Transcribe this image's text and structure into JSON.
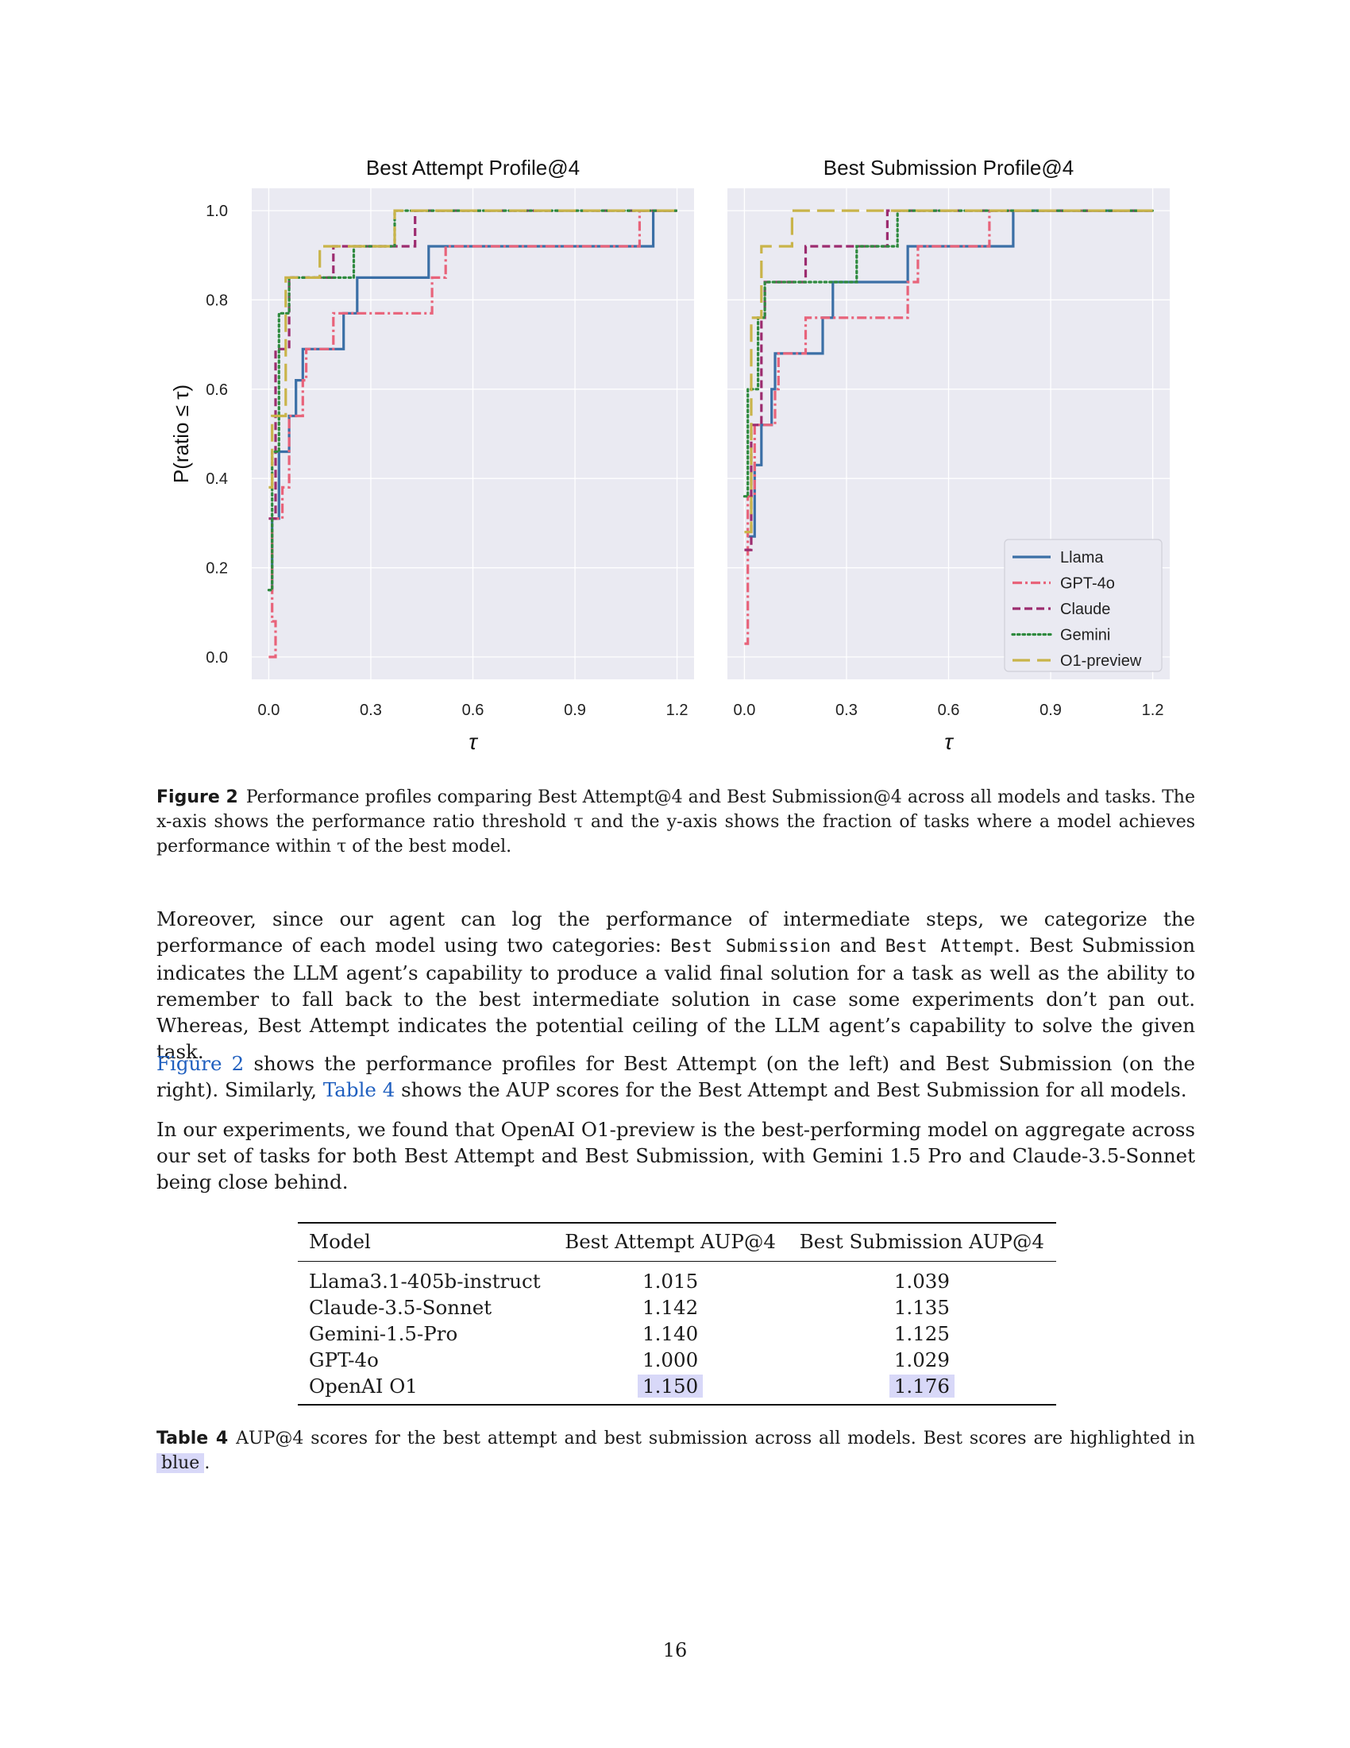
{
  "figure": {
    "label": "Figure 2",
    "caption": "Performance profiles comparing Best Attempt@4 and Best Submission@4 across all models and tasks. The x-axis shows the performance ratio threshold τ and the y-axis shows the fraction of tasks where a model achieves performance within τ of the best model.",
    "colors": {
      "background": "#eaeaf2",
      "Llama": "#3b6fa6",
      "GPT-4o": "#e8637a",
      "Claude": "#9c2c6f",
      "Gemini": "#2e8a3e",
      "O1-preview": "#c9b44a"
    }
  },
  "chart_data": [
    {
      "type": "line",
      "step": true,
      "title": "Best Attempt Profile@4",
      "xlabel": "τ",
      "ylabel": "P(ratio ≤ τ)",
      "xlim": [
        -0.05,
        1.25
      ],
      "ylim": [
        -0.05,
        1.05
      ],
      "xticks": [
        "0.0",
        "0.3",
        "0.6",
        "0.9",
        "1.2"
      ],
      "yticks": [
        "0.0",
        "0.2",
        "0.4",
        "0.6",
        "0.8",
        "1.0"
      ],
      "grid": true,
      "legend": false,
      "series": [
        {
          "name": "Llama",
          "style": "solid",
          "points": [
            [
              0,
              0.15
            ],
            [
              0.01,
              0.31
            ],
            [
              0.03,
              0.46
            ],
            [
              0.06,
              0.54
            ],
            [
              0.08,
              0.62
            ],
            [
              0.1,
              0.69
            ],
            [
              0.22,
              0.77
            ],
            [
              0.26,
              0.85
            ],
            [
              0.47,
              0.92
            ],
            [
              1.13,
              1.0
            ],
            [
              1.2,
              1.0
            ]
          ]
        },
        {
          "name": "GPT-4o",
          "style": "dashdot",
          "points": [
            [
              0,
              0.0
            ],
            [
              0.02,
              0.08
            ],
            [
              0.01,
              0.31
            ],
            [
              0.04,
              0.38
            ],
            [
              0.06,
              0.54
            ],
            [
              0.1,
              0.62
            ],
            [
              0.11,
              0.69
            ],
            [
              0.19,
              0.77
            ],
            [
              0.48,
              0.85
            ],
            [
              0.52,
              0.92
            ],
            [
              1.09,
              1.0
            ],
            [
              1.2,
              1.0
            ]
          ]
        },
        {
          "name": "Claude",
          "style": "dashed",
          "points": [
            [
              0,
              0.31
            ],
            [
              0.02,
              0.69
            ],
            [
              0.06,
              0.85
            ],
            [
              0.19,
              0.92
            ],
            [
              0.43,
              1.0
            ],
            [
              1.2,
              1.0
            ]
          ]
        },
        {
          "name": "Gemini",
          "style": "dotted",
          "points": [
            [
              0,
              0.15
            ],
            [
              0.01,
              0.46
            ],
            [
              0.03,
              0.77
            ],
            [
              0.06,
              0.85
            ],
            [
              0.25,
              0.92
            ],
            [
              0.37,
              1.0
            ],
            [
              1.2,
              1.0
            ]
          ]
        },
        {
          "name": "O1-preview",
          "style": "longdash",
          "points": [
            [
              0,
              0.38
            ],
            [
              0.01,
              0.54
            ],
            [
              0.05,
              0.85
            ],
            [
              0.15,
              0.92
            ],
            [
              0.37,
              1.0
            ],
            [
              1.2,
              1.0
            ]
          ]
        }
      ]
    },
    {
      "type": "line",
      "step": true,
      "title": "Best Submission Profile@4",
      "xlabel": "τ",
      "ylabel": "",
      "xlim": [
        -0.05,
        1.25
      ],
      "ylim": [
        -0.05,
        1.05
      ],
      "xticks": [
        "0.0",
        "0.3",
        "0.6",
        "0.9",
        "1.2"
      ],
      "yticks": [],
      "grid": true,
      "legend": "bottom-right",
      "series": [
        {
          "name": "Llama",
          "style": "solid",
          "points": [
            [
              0.01,
              0.27
            ],
            [
              0.03,
              0.43
            ],
            [
              0.05,
              0.52
            ],
            [
              0.08,
              0.6
            ],
            [
              0.09,
              0.68
            ],
            [
              0.23,
              0.76
            ],
            [
              0.26,
              0.84
            ],
            [
              0.48,
              0.92
            ],
            [
              0.79,
              1.0
            ],
            [
              1.2,
              1.0
            ]
          ]
        },
        {
          "name": "GPT-4o",
          "style": "dashdot",
          "points": [
            [
              0,
              0.03
            ],
            [
              0.01,
              0.36
            ],
            [
              0.03,
              0.52
            ],
            [
              0.09,
              0.6
            ],
            [
              0.1,
              0.68
            ],
            [
              0.18,
              0.76
            ],
            [
              0.48,
              0.84
            ],
            [
              0.51,
              0.92
            ],
            [
              0.72,
              1.0
            ],
            [
              1.2,
              1.0
            ]
          ]
        },
        {
          "name": "Claude",
          "style": "dashed",
          "points": [
            [
              0,
              0.24
            ],
            [
              0.02,
              0.52
            ],
            [
              0.05,
              0.76
            ],
            [
              0.06,
              0.84
            ],
            [
              0.18,
              0.92
            ],
            [
              0.42,
              1.0
            ],
            [
              1.2,
              1.0
            ]
          ]
        },
        {
          "name": "Gemini",
          "style": "dotted",
          "points": [
            [
              0,
              0.36
            ],
            [
              0.01,
              0.6
            ],
            [
              0.04,
              0.76
            ],
            [
              0.06,
              0.84
            ],
            [
              0.33,
              0.92
            ],
            [
              0.45,
              1.0
            ],
            [
              1.2,
              1.0
            ]
          ]
        },
        {
          "name": "O1-preview",
          "style": "longdash",
          "points": [
            [
              0,
              0.28
            ],
            [
              0.02,
              0.76
            ],
            [
              0.05,
              0.92
            ],
            [
              0.14,
              1.0
            ],
            [
              1.2,
              1.0
            ]
          ]
        }
      ]
    }
  ],
  "body": {
    "para1": {
      "t1": "Moreover, since our agent can log the performance of intermediate steps, we categorize the performance of each model using two categories: ",
      "code1": "Best Submission",
      "t2": " and ",
      "code2": "Best Attempt",
      "t3": ". Best Submission indicates the LLM agent’s capability to produce a valid final solution for a task as well as the ability to remember to fall back to the best intermediate solution in case some experiments don’t pan out. Whereas, Best Attempt indicates the potential ceiling of the LLM agent’s capability to solve the given task."
    },
    "para2": {
      "ref1": "Figure 2",
      "t1": " shows the performance profiles for Best Attempt (on the left) and Best Submission (on the right). Similarly, ",
      "ref2": "Table 4",
      "t2": " shows the AUP scores for the Best Attempt and Best Submission for all models."
    },
    "para3": "In our experiments, we found that OpenAI O1-preview is the best-performing model on aggregate across our set of tasks for both Best Attempt and Best Submission, with Gemini 1.5 Pro and Claude-3.5-Sonnet being close behind."
  },
  "table": {
    "headers": [
      "Model",
      "Best Attempt AUP@4",
      "Best Submission AUP@4"
    ],
    "rows": [
      {
        "model": "Llama3.1-405b-instruct",
        "attempt": "1.015",
        "submission": "1.039"
      },
      {
        "model": "Claude-3.5-Sonnet",
        "attempt": "1.142",
        "submission": "1.135"
      },
      {
        "model": "Gemini-1.5-Pro",
        "attempt": "1.140",
        "submission": "1.125"
      },
      {
        "model": "GPT-4o",
        "attempt": "1.000",
        "submission": "1.029"
      },
      {
        "model": "OpenAI O1",
        "attempt": "1.150",
        "submission": "1.176"
      }
    ],
    "highlight_color": "#d8d8f8",
    "caption_label": "Table 4",
    "caption_text": "AUP@4 scores for the best attempt and best submission across all models. Best scores are highlighted in ",
    "caption_highlight": "blue",
    "caption_end": "."
  },
  "page_number": "16"
}
